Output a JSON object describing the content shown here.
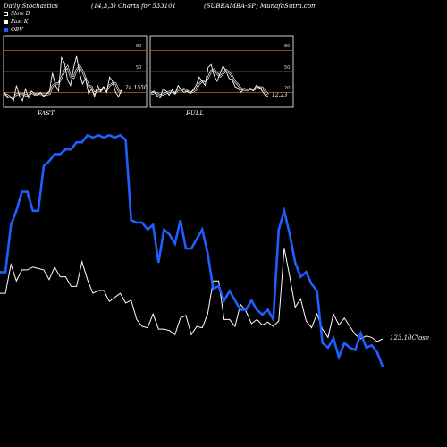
{
  "header": {
    "left": "Daily Stochastics",
    "middle": "(14,3,3) Charts for 533101",
    "right": "(SUBEAMBA-SP) MunafaSutra.com"
  },
  "legend": [
    {
      "label": "Slow D",
      "color": "#000000"
    },
    {
      "label": "Fast K",
      "color": "#ffffff"
    },
    {
      "label": "OBV",
      "color": "#1f5fff"
    }
  ],
  "colors": {
    "background": "#000000",
    "obv_line": "#1f5fff",
    "close_line": "#ffffff",
    "stoch_level_lines": "#b5651d",
    "panel_border": "#ffffff"
  },
  "chart_data": [
    {
      "type": "line",
      "title": "FAST",
      "ylim": [
        0,
        100
      ],
      "yticks": [
        20,
        50,
        80
      ],
      "last_value_label": "24.15",
      "last_value_suffix": "50",
      "series": [
        {
          "name": "Fast K",
          "values": [
            20,
            12,
            14,
            8,
            30,
            15,
            8,
            25,
            12,
            22,
            18,
            16,
            20,
            14,
            18,
            22,
            48,
            30,
            22,
            70,
            62,
            38,
            30,
            55,
            72,
            48,
            32,
            40,
            18,
            25,
            14,
            30,
            22,
            28,
            20,
            42,
            36,
            20,
            14,
            24
          ]
        },
        {
          "name": "Slow D",
          "values": [
            18,
            16,
            13,
            12,
            17,
            18,
            18,
            16,
            15,
            20,
            17,
            18,
            18,
            17,
            17,
            18,
            29,
            33,
            33,
            41,
            51,
            57,
            43,
            41,
            52,
            58,
            51,
            40,
            30,
            28,
            19,
            23,
            22,
            27,
            23,
            30,
            33,
            33,
            23,
            19
          ]
        }
      ]
    },
    {
      "type": "line",
      "title": "FULL",
      "ylim": [
        0,
        100
      ],
      "yticks": [
        20,
        50,
        80
      ],
      "last_value_label": "12.23",
      "series": [
        {
          "name": "Fast K",
          "values": [
            20,
            22,
            15,
            12,
            25,
            22,
            16,
            24,
            18,
            30,
            24,
            20,
            22,
            18,
            24,
            30,
            42,
            36,
            30,
            56,
            60,
            44,
            36,
            48,
            58,
            50,
            40,
            38,
            28,
            26,
            20,
            26,
            24,
            26,
            22,
            30,
            28,
            22,
            16,
            14
          ]
        },
        {
          "name": "Slow D",
          "values": [
            18,
            19,
            19,
            16,
            17,
            19,
            21,
            21,
            19,
            24,
            24,
            25,
            22,
            20,
            21,
            24,
            32,
            36,
            36,
            41,
            51,
            53,
            47,
            43,
            47,
            52,
            49,
            43,
            35,
            31,
            25,
            24,
            23,
            25,
            24,
            26,
            27,
            27,
            22,
            17
          ]
        }
      ]
    },
    {
      "type": "line",
      "ylim": [
        0,
        100
      ],
      "last_value_label": "123.10",
      "last_value_suffix": "Close",
      "series": [
        {
          "name": "OBV",
          "values": [
            40,
            40,
            60,
            66,
            74,
            74,
            66,
            66,
            85,
            87,
            90,
            90,
            92,
            92,
            95,
            95,
            98,
            97,
            98,
            97,
            98,
            97,
            98,
            96,
            62,
            61,
            61,
            58,
            60,
            44,
            58,
            56,
            52,
            62,
            50,
            50,
            54,
            58,
            48,
            33,
            34,
            28,
            32,
            28,
            24,
            24,
            28,
            24,
            22,
            24,
            20,
            58,
            66,
            56,
            44,
            38,
            40,
            35,
            32,
            10,
            8,
            12,
            4,
            10,
            8,
            7,
            14,
            8,
            9,
            6,
            0
          ]
        },
        {
          "name": "Close",
          "values": [
            35,
            35,
            56,
            44,
            52,
            52,
            54,
            53,
            52,
            45,
            54,
            47,
            47,
            40,
            40,
            58,
            45,
            35,
            37,
            37,
            29,
            32,
            35,
            28,
            30,
            16,
            11,
            10,
            20,
            9,
            9,
            8,
            5,
            17,
            19,
            5,
            11,
            10,
            20,
            44,
            44,
            16,
            16,
            11,
            27,
            22,
            13,
            16,
            12,
            14,
            11,
            15,
            68,
            47,
            25,
            31,
            15,
            10,
            20,
            9,
            3,
            20,
            12,
            17,
            11,
            5,
            2,
            4,
            3,
            0,
            2
          ]
        }
      ]
    }
  ]
}
